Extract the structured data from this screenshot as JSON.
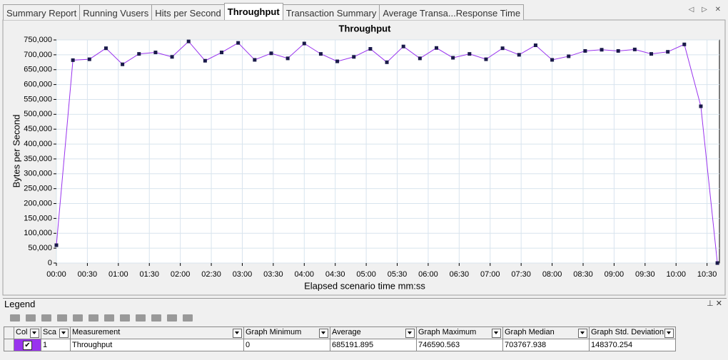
{
  "tabs": [
    "Summary Report",
    "Running Vusers",
    "Hits per Second",
    "Throughput",
    "Transaction Summary",
    "Average Transa...Response Time"
  ],
  "chart_data": {
    "type": "line",
    "title": "Throughput",
    "x_label": "Elapsed scenario time mm:ss",
    "y_label": "Bytes per Second",
    "x": [
      0,
      16,
      32,
      48,
      64,
      80,
      96,
      112,
      128,
      144,
      160,
      176,
      192,
      208,
      224,
      240,
      256,
      272,
      288,
      304,
      320,
      336,
      352,
      368,
      384,
      400,
      416,
      432,
      448,
      464,
      480,
      496,
      512,
      528,
      544,
      560,
      576,
      592,
      608,
      624,
      640
    ],
    "values": [
      60000,
      682000,
      685000,
      722000,
      668000,
      703000,
      708000,
      693000,
      745000,
      680000,
      708000,
      740000,
      683000,
      705000,
      688000,
      738000,
      703000,
      678000,
      693000,
      720000,
      675000,
      728000,
      688000,
      723000,
      690000,
      703000,
      685000,
      722000,
      700000,
      732000,
      683000,
      695000,
      713000,
      717000,
      713000,
      718000,
      703000,
      710000,
      735000,
      527000,
      0
    ],
    "color": "#9933ee",
    "marker_color": "#1a1a4a",
    "xlim": [
      0,
      642
    ],
    "ylim": [
      0,
      750000
    ],
    "xticks": [
      {
        "value": 0,
        "label": "00:00"
      },
      {
        "value": 30,
        "label": "00:30"
      },
      {
        "value": 60,
        "label": "01:00"
      },
      {
        "value": 90,
        "label": "01:30"
      },
      {
        "value": 120,
        "label": "02:00"
      },
      {
        "value": 150,
        "label": "02:30"
      },
      {
        "value": 180,
        "label": "03:00"
      },
      {
        "value": 210,
        "label": "03:30"
      },
      {
        "value": 240,
        "label": "04:00"
      },
      {
        "value": 270,
        "label": "04:30"
      },
      {
        "value": 300,
        "label": "05:00"
      },
      {
        "value": 330,
        "label": "05:30"
      },
      {
        "value": 360,
        "label": "06:00"
      },
      {
        "value": 390,
        "label": "06:30"
      },
      {
        "value": 420,
        "label": "07:00"
      },
      {
        "value": 450,
        "label": "07:30"
      },
      {
        "value": 480,
        "label": "08:00"
      },
      {
        "value": 510,
        "label": "08:30"
      },
      {
        "value": 540,
        "label": "09:00"
      },
      {
        "value": 570,
        "label": "09:30"
      },
      {
        "value": 600,
        "label": "10:00"
      },
      {
        "value": 630,
        "label": "10:30"
      }
    ],
    "yticks": [
      0,
      {
        "value": 50000,
        "label": "50,000"
      },
      {
        "value": 100000,
        "label": "100,000"
      },
      {
        "value": 150000,
        "label": "150,000"
      },
      {
        "value": 200000,
        "label": "200,000"
      },
      {
        "value": 250000,
        "label": "250,000"
      },
      {
        "value": 300000,
        "label": "300,000"
      },
      {
        "value": 350000,
        "label": "350,000"
      },
      {
        "value": 400000,
        "label": "400,000"
      },
      {
        "value": 450000,
        "label": "450,000"
      },
      {
        "value": 500000,
        "label": "500,000"
      },
      {
        "value": 550000,
        "label": "550,000"
      },
      {
        "value": 600000,
        "label": "600,000"
      },
      {
        "value": 650000,
        "label": "650,000"
      },
      {
        "value": 700000,
        "label": "700,000"
      },
      {
        "value": 750000,
        "label": "750,000"
      }
    ],
    "grid": true
  },
  "legend": {
    "title": "Legend",
    "columns": [
      "Col",
      "Sca",
      "Measurement",
      "Graph Minimum",
      "Average",
      "Graph Maximum",
      "Graph Median",
      "Graph Std. Deviation"
    ],
    "rows": [
      [
        "1",
        "Throughput",
        "0",
        "685191.895",
        "746590.563",
        "703767.938",
        "148370.254"
      ]
    ]
  }
}
